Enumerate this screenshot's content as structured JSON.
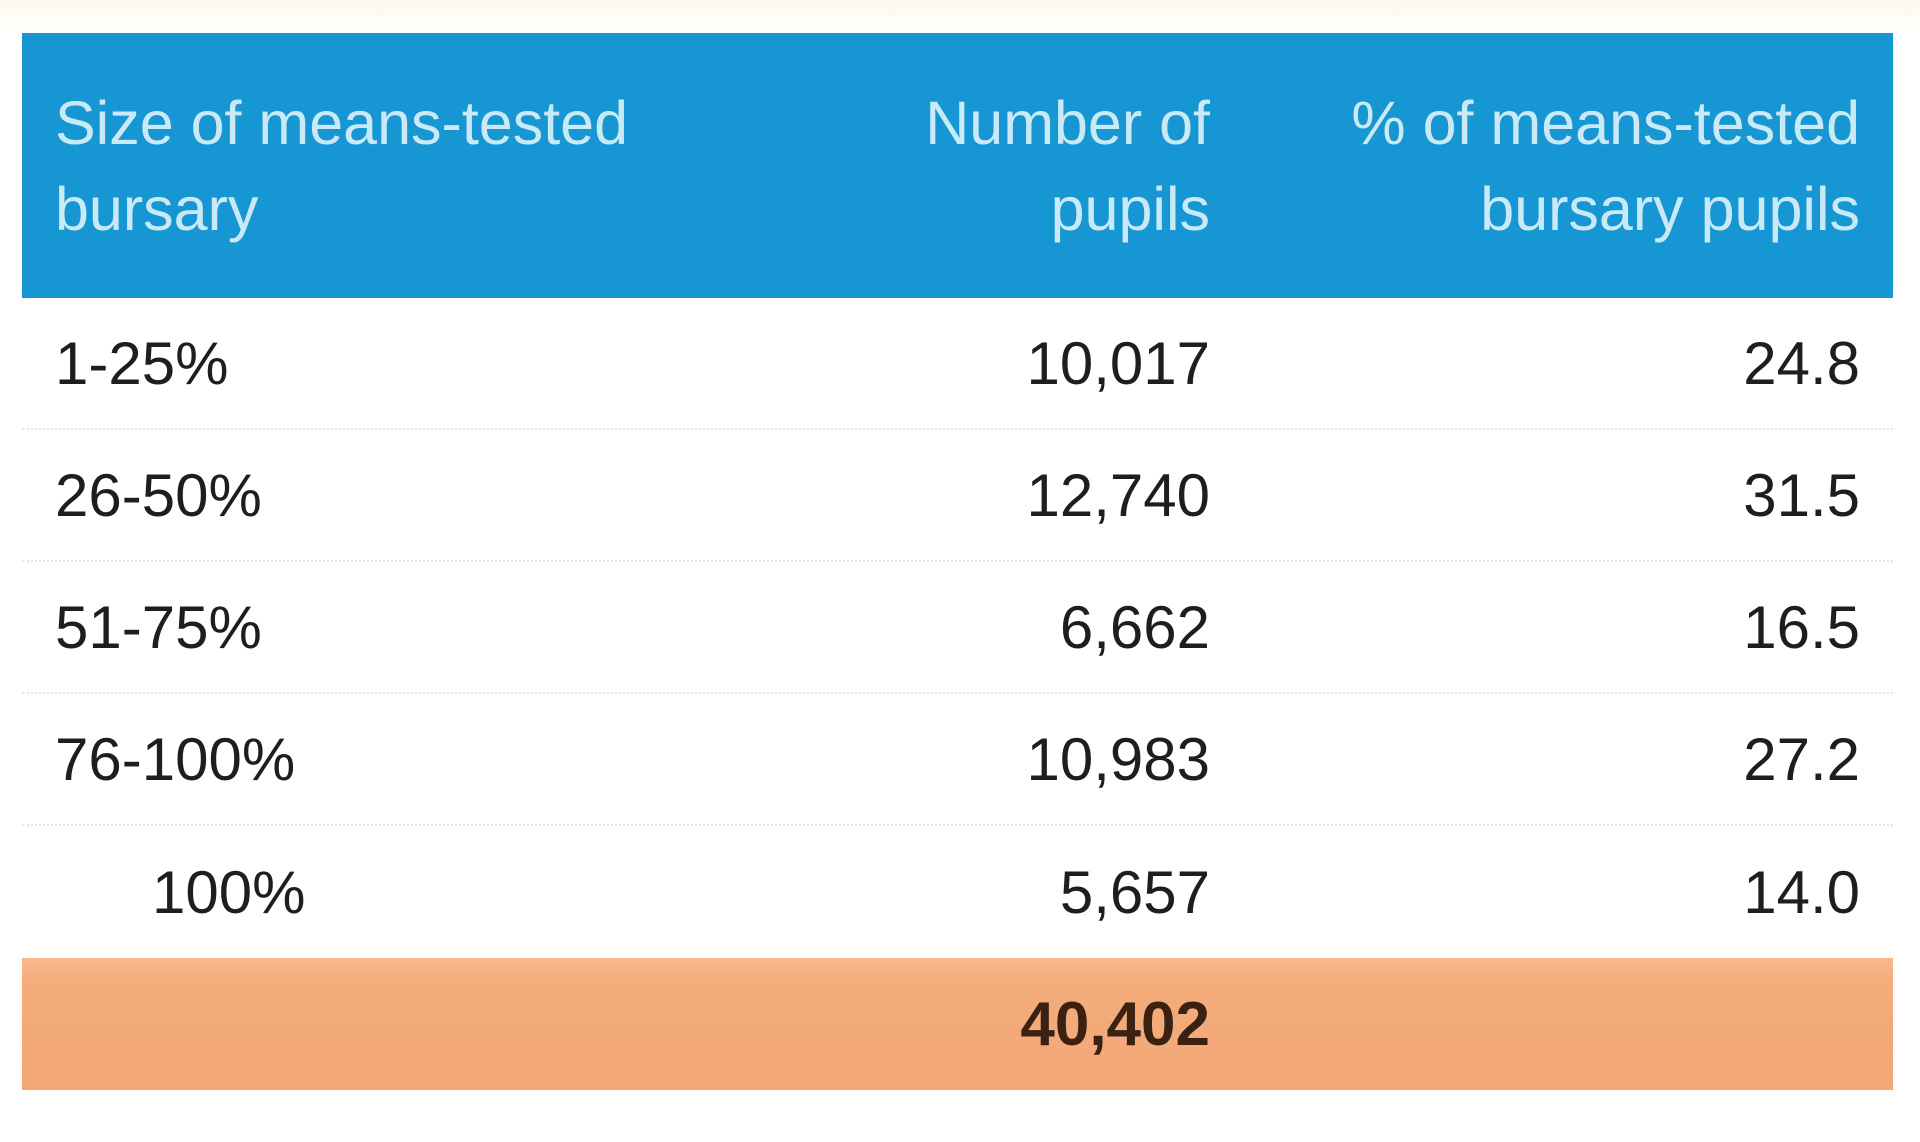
{
  "page": {
    "background_color": "#ffffff",
    "top_strip_color": "#fbf8e8"
  },
  "table": {
    "header": {
      "bg_color": "#1697d3",
      "text_color": "#c9e9f7",
      "columns": [
        {
          "label": "Size of means-tested bursary",
          "line1": "Size of means-tested",
          "line2": "bursary",
          "align": "left"
        },
        {
          "label": "Number of pupils",
          "line1": "Number of",
          "line2": "pupils",
          "align": "right"
        },
        {
          "label": "% of means-tested bursary pupils",
          "line1": "% of means-tested",
          "line2": "bursary pupils",
          "align": "right"
        }
      ]
    },
    "rows": [
      {
        "size": "1-25%",
        "pupils": "10,017",
        "pct": "24.8"
      },
      {
        "size": "26-50%",
        "pupils": "12,740",
        "pct": "31.5"
      },
      {
        "size": "51-75%",
        "pupils": "6,662",
        "pct": "16.5"
      },
      {
        "size": "76-100%",
        "pupils": "10,983",
        "pct": "27.2"
      },
      {
        "size": "100%",
        "pupils": "5,657",
        "pct": "14.0"
      }
    ],
    "total_row": {
      "bg_color": "#f4ac7b",
      "text_color": "#3a2112",
      "total": "40,402"
    }
  },
  "chart_data": {
    "type": "table",
    "columns": [
      "Size of means-tested bursary",
      "Number of pupils",
      "% of means-tested bursary pupils"
    ],
    "rows": [
      [
        "1-25%",
        10017,
        24.8
      ],
      [
        "26-50%",
        12740,
        31.5
      ],
      [
        "51-75%",
        6662,
        16.5
      ],
      [
        "76-100%",
        10983,
        27.2
      ],
      [
        "100%",
        5657,
        14.0
      ]
    ],
    "total_pupils": 40402
  }
}
